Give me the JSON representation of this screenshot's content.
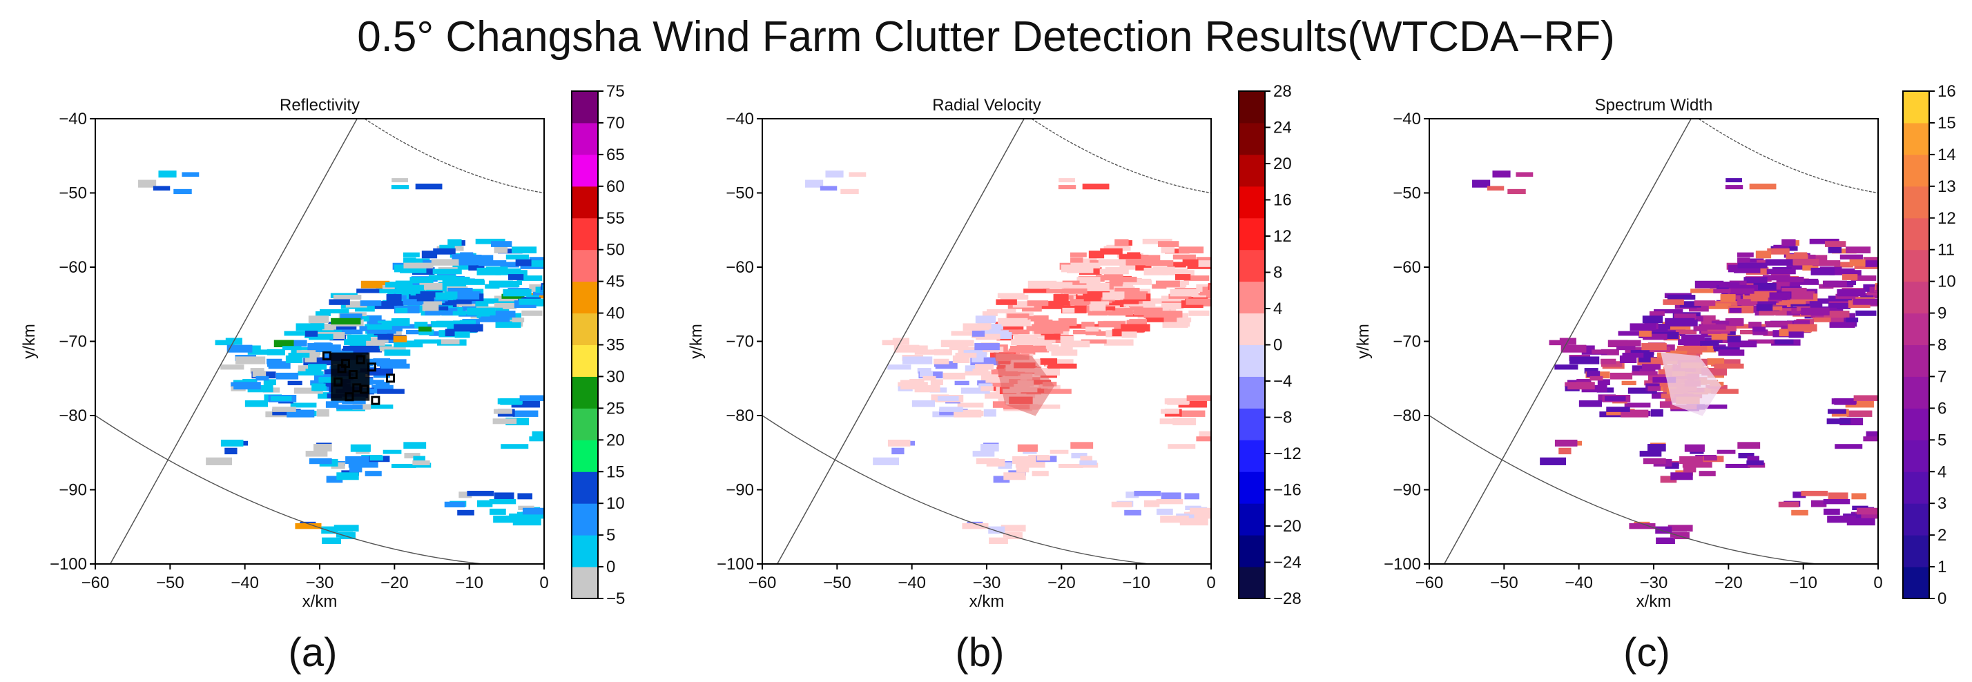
{
  "title": "0.5° Changsha Wind Farm Clutter Detection Results(WTCDA−RF)",
  "chart_data": [
    {
      "type": "heatmap",
      "panel_label": "(a)",
      "title": "Reflectivity",
      "xlabel": "x/km",
      "ylabel": "y/km",
      "xlim": [
        -60,
        0
      ],
      "ylim": [
        -100,
        -40
      ],
      "xticks": [
        -60,
        -50,
        -40,
        -30,
        -20,
        -10,
        0
      ],
      "yticks": [
        -40,
        -50,
        -60,
        -70,
        -80,
        -90,
        -100
      ],
      "colorbar": {
        "min": -5,
        "max": 75,
        "ticks": [
          "75",
          "70",
          "65",
          "60",
          "55",
          "50",
          "45",
          "40",
          "35",
          "30",
          "25",
          "20",
          "15",
          "10",
          "5",
          "0",
          "−5"
        ],
        "colors": [
          "#c8c8c8",
          "#00c8f0",
          "#1e90ff",
          "#0a46d2",
          "#00f064",
          "#32c850",
          "#109610",
          "#ffe640",
          "#f0c030",
          "#f59600",
          "#ff7070",
          "#ff3838",
          "#c80000",
          "#f000f0",
          "#c800c8",
          "#780078"
        ]
      },
      "overlay": "black squares marking detected wind turbine clutter near x=-26, y=-74"
    },
    {
      "type": "heatmap",
      "panel_label": "(b)",
      "title": "Radial Velocity",
      "xlabel": "x/km",
      "ylabel": "y/km",
      "xlim": [
        -60,
        0
      ],
      "ylim": [
        -100,
        -40
      ],
      "xticks": [
        -60,
        -50,
        -40,
        -30,
        -20,
        -10,
        0
      ],
      "yticks": [
        -40,
        -50,
        -60,
        -70,
        -80,
        -90,
        -100
      ],
      "colorbar": {
        "min": -28,
        "max": 28,
        "ticks": [
          "28",
          "24",
          "20",
          "16",
          "12",
          "8",
          "4",
          "0",
          "−4",
          "−8",
          "−12",
          "−16",
          "−20",
          "−24",
          "−28"
        ],
        "colors": [
          "#0a0a46",
          "#000080",
          "#0000b4",
          "#0000e6",
          "#1e1eff",
          "#4646ff",
          "#8c8cff",
          "#d2d2ff",
          "#ffd2d2",
          "#ff8c8c",
          "#ff4646",
          "#ff1e1e",
          "#e60000",
          "#b40000",
          "#800000",
          "#640000"
        ]
      },
      "overlay": "shaded polygon marking wind farm clutter near x=-26, y=-74"
    },
    {
      "type": "heatmap",
      "panel_label": "(c)",
      "title": "Spectrum Width",
      "xlabel": "x/km",
      "ylabel": "y/km",
      "xlim": [
        -60,
        0
      ],
      "ylim": [
        -100,
        -40
      ],
      "xticks": [
        -60,
        -50,
        -40,
        -30,
        -20,
        -10,
        0
      ],
      "yticks": [
        -40,
        -50,
        -60,
        -70,
        -80,
        -90,
        -100
      ],
      "colorbar": {
        "min": 0,
        "max": 16,
        "ticks": [
          "16",
          "15",
          "14",
          "13",
          "12",
          "11",
          "10",
          "9",
          "8",
          "7",
          "6",
          "5",
          "4",
          "3",
          "2",
          "1",
          "0"
        ],
        "colors": [
          "#0c0c8c",
          "#28109c",
          "#4010a8",
          "#5810b0",
          "#6e10b0",
          "#8010ac",
          "#9418a4",
          "#a8229a",
          "#bc3090",
          "#cc4080",
          "#dc5070",
          "#e86060",
          "#f07450",
          "#f88840",
          "#fca030",
          "#ffd030"
        ]
      },
      "overlay": "light polygon marking wind farm clutter near x=-26, y=-74"
    }
  ]
}
